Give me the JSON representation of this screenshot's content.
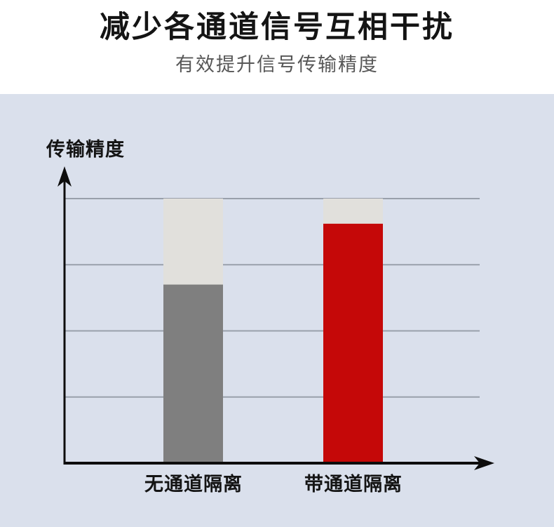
{
  "header": {
    "title": "减少各通道信号互相干扰",
    "subtitle": "有效提升信号传输精度"
  },
  "chart_data": {
    "type": "bar",
    "title": "",
    "xlabel": "",
    "ylabel": "传输精度",
    "categories": [
      "无通道隔离",
      "带通道隔离"
    ],
    "series": [
      {
        "name": "full-scale-background",
        "values": [
          1.0,
          1.0
        ],
        "colors": [
          "#e1e0dc",
          "#e1e0dc"
        ]
      },
      {
        "name": "transmission-accuracy",
        "values": [
          0.675,
          0.905
        ],
        "colors": [
          "#7f7f7f",
          "#c50808"
        ]
      }
    ],
    "ylim": [
      0,
      1
    ],
    "grid": true,
    "gridline_values": [
      0.25,
      0.5,
      0.75,
      1.0
    ],
    "legend_position": "none",
    "axis_color": "#0d0d0d",
    "gridline_color": "#99a0ab",
    "panel_background": "#dae0ec"
  },
  "colors": {
    "page_background": "#ffffff",
    "title_text": "#141414",
    "subtitle_text": "#575757",
    "bar_no_isolation": "#7f7f7f",
    "bar_with_isolation": "#c50808",
    "bar_ghost": "#e1e0dc"
  }
}
